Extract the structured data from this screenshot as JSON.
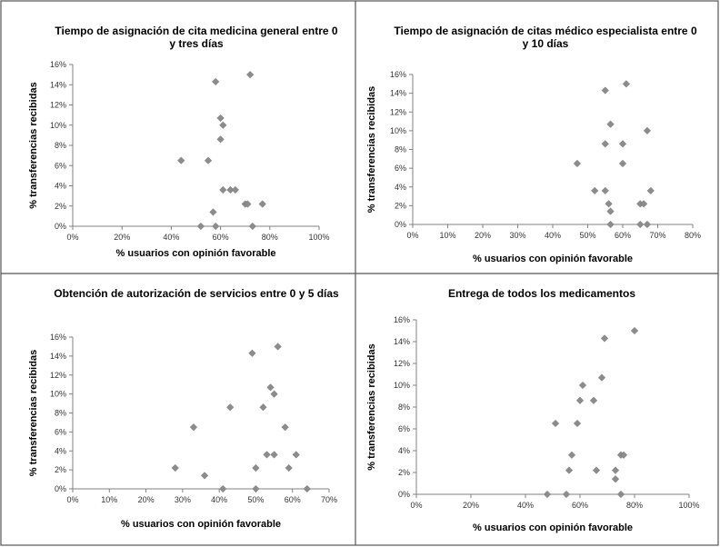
{
  "chart_data": [
    {
      "type": "scatter",
      "title_lines": [
        "Tiempo de asignación de cita medicina general entre 0",
        "y tres días"
      ],
      "xlabel": "% usuarios con opinión favorable",
      "ylabel": "% transferencias recibidas",
      "xlim": [
        0,
        1.0
      ],
      "ylim": [
        0,
        0.16
      ],
      "x_ticks": [
        0,
        0.2,
        0.4,
        0.6,
        0.8,
        1.0
      ],
      "y_ticks": [
        0,
        0.02,
        0.04,
        0.06,
        0.08,
        0.1,
        0.12,
        0.14,
        0.16
      ],
      "x_tick_labels": [
        "0%",
        "20%",
        "40%",
        "60%",
        "80%",
        "100%"
      ],
      "y_tick_labels": [
        "0%",
        "2%",
        "4%",
        "6%",
        "8%",
        "10%",
        "12%",
        "14%",
        "16%"
      ],
      "grid": false,
      "points": [
        {
          "x": 0.72,
          "y": 0.15
        },
        {
          "x": 0.58,
          "y": 0.143
        },
        {
          "x": 0.6,
          "y": 0.107
        },
        {
          "x": 0.61,
          "y": 0.1
        },
        {
          "x": 0.6,
          "y": 0.086
        },
        {
          "x": 0.44,
          "y": 0.065
        },
        {
          "x": 0.55,
          "y": 0.065
        },
        {
          "x": 0.61,
          "y": 0.036
        },
        {
          "x": 0.64,
          "y": 0.036
        },
        {
          "x": 0.66,
          "y": 0.036
        },
        {
          "x": 0.7,
          "y": 0.022
        },
        {
          "x": 0.71,
          "y": 0.022
        },
        {
          "x": 0.77,
          "y": 0.022
        },
        {
          "x": 0.57,
          "y": 0.014
        },
        {
          "x": 0.52,
          "y": 0.0
        },
        {
          "x": 0.58,
          "y": 0.0
        },
        {
          "x": 0.73,
          "y": 0.0
        }
      ]
    },
    {
      "type": "scatter",
      "title_lines": [
        "Tiempo de asignación de citas médico especialista entre 0",
        "y 10 días"
      ],
      "xlabel": "% usuarios con opinión favorable",
      "ylabel": "% transferencias recibidas",
      "xlim": [
        0,
        0.8
      ],
      "ylim": [
        0,
        0.16
      ],
      "x_ticks": [
        0,
        0.1,
        0.2,
        0.3,
        0.4,
        0.5,
        0.6,
        0.7,
        0.8
      ],
      "y_ticks": [
        0,
        0.02,
        0.04,
        0.06,
        0.08,
        0.1,
        0.12,
        0.14,
        0.16
      ],
      "x_tick_labels": [
        "0%",
        "10%",
        "20%",
        "30%",
        "40%",
        "50%",
        "60%",
        "70%",
        "80%"
      ],
      "y_tick_labels": [
        "0%",
        "2%",
        "4%",
        "6%",
        "8%",
        "10%",
        "12%",
        "14%",
        "16%"
      ],
      "grid": false,
      "points": [
        {
          "x": 0.61,
          "y": 0.15
        },
        {
          "x": 0.55,
          "y": 0.143
        },
        {
          "x": 0.565,
          "y": 0.107
        },
        {
          "x": 0.67,
          "y": 0.1
        },
        {
          "x": 0.55,
          "y": 0.086
        },
        {
          "x": 0.6,
          "y": 0.086
        },
        {
          "x": 0.47,
          "y": 0.065
        },
        {
          "x": 0.6,
          "y": 0.065
        },
        {
          "x": 0.52,
          "y": 0.036
        },
        {
          "x": 0.55,
          "y": 0.036
        },
        {
          "x": 0.68,
          "y": 0.036
        },
        {
          "x": 0.56,
          "y": 0.022
        },
        {
          "x": 0.65,
          "y": 0.022
        },
        {
          "x": 0.66,
          "y": 0.022
        },
        {
          "x": 0.565,
          "y": 0.014
        },
        {
          "x": 0.565,
          "y": 0.0
        },
        {
          "x": 0.65,
          "y": 0.0
        },
        {
          "x": 0.67,
          "y": 0.0
        }
      ]
    },
    {
      "type": "scatter",
      "title_lines": [
        "Obtención de autorización de servicios entre 0 y 5 días"
      ],
      "xlabel": "% usuarios con opinión favorable",
      "ylabel": "% transferencias recibidas",
      "xlim": [
        0,
        0.7
      ],
      "ylim": [
        0,
        0.16
      ],
      "x_ticks": [
        0,
        0.1,
        0.2,
        0.3,
        0.4,
        0.5,
        0.6,
        0.7
      ],
      "y_ticks": [
        0,
        0.02,
        0.04,
        0.06,
        0.08,
        0.1,
        0.12,
        0.14,
        0.16
      ],
      "x_tick_labels": [
        "0%",
        "10%",
        "20%",
        "30%",
        "40%",
        "50%",
        "60%",
        "70%"
      ],
      "y_tick_labels": [
        "0%",
        "2%",
        "4%",
        "6%",
        "8%",
        "10%",
        "12%",
        "14%",
        "16%"
      ],
      "grid": false,
      "points": [
        {
          "x": 0.56,
          "y": 0.15
        },
        {
          "x": 0.49,
          "y": 0.143
        },
        {
          "x": 0.54,
          "y": 0.107
        },
        {
          "x": 0.55,
          "y": 0.1
        },
        {
          "x": 0.43,
          "y": 0.086
        },
        {
          "x": 0.52,
          "y": 0.086
        },
        {
          "x": 0.33,
          "y": 0.065
        },
        {
          "x": 0.58,
          "y": 0.065
        },
        {
          "x": 0.53,
          "y": 0.036
        },
        {
          "x": 0.55,
          "y": 0.036
        },
        {
          "x": 0.61,
          "y": 0.036
        },
        {
          "x": 0.28,
          "y": 0.022
        },
        {
          "x": 0.5,
          "y": 0.022
        },
        {
          "x": 0.59,
          "y": 0.022
        },
        {
          "x": 0.36,
          "y": 0.014
        },
        {
          "x": 0.41,
          "y": 0.0
        },
        {
          "x": 0.5,
          "y": 0.0
        },
        {
          "x": 0.64,
          "y": 0.0
        }
      ]
    },
    {
      "type": "scatter",
      "title_lines": [
        "Entrega de todos los  medicamentos"
      ],
      "xlabel": "% usuarios con opinión favorable",
      "ylabel": "% transferencias recibidas",
      "xlim": [
        0,
        1.0
      ],
      "ylim": [
        0,
        0.16
      ],
      "x_ticks": [
        0,
        0.2,
        0.4,
        0.6,
        0.8,
        1.0
      ],
      "y_ticks": [
        0,
        0.02,
        0.04,
        0.06,
        0.08,
        0.1,
        0.12,
        0.14,
        0.16
      ],
      "x_tick_labels": [
        "0%",
        "20%",
        "40%",
        "60%",
        "80%",
        "100%"
      ],
      "y_tick_labels": [
        "0%",
        "2%",
        "4%",
        "6%",
        "8%",
        "10%",
        "12%",
        "14%",
        "16%"
      ],
      "grid": false,
      "points": [
        {
          "x": 0.8,
          "y": 0.15
        },
        {
          "x": 0.69,
          "y": 0.143
        },
        {
          "x": 0.68,
          "y": 0.107
        },
        {
          "x": 0.61,
          "y": 0.1
        },
        {
          "x": 0.6,
          "y": 0.086
        },
        {
          "x": 0.65,
          "y": 0.086
        },
        {
          "x": 0.51,
          "y": 0.065
        },
        {
          "x": 0.59,
          "y": 0.065
        },
        {
          "x": 0.57,
          "y": 0.036
        },
        {
          "x": 0.75,
          "y": 0.036
        },
        {
          "x": 0.76,
          "y": 0.036
        },
        {
          "x": 0.56,
          "y": 0.022
        },
        {
          "x": 0.66,
          "y": 0.022
        },
        {
          "x": 0.73,
          "y": 0.022
        },
        {
          "x": 0.73,
          "y": 0.014
        },
        {
          "x": 0.48,
          "y": 0.0
        },
        {
          "x": 0.55,
          "y": 0.0
        },
        {
          "x": 0.75,
          "y": 0.0
        }
      ]
    }
  ]
}
